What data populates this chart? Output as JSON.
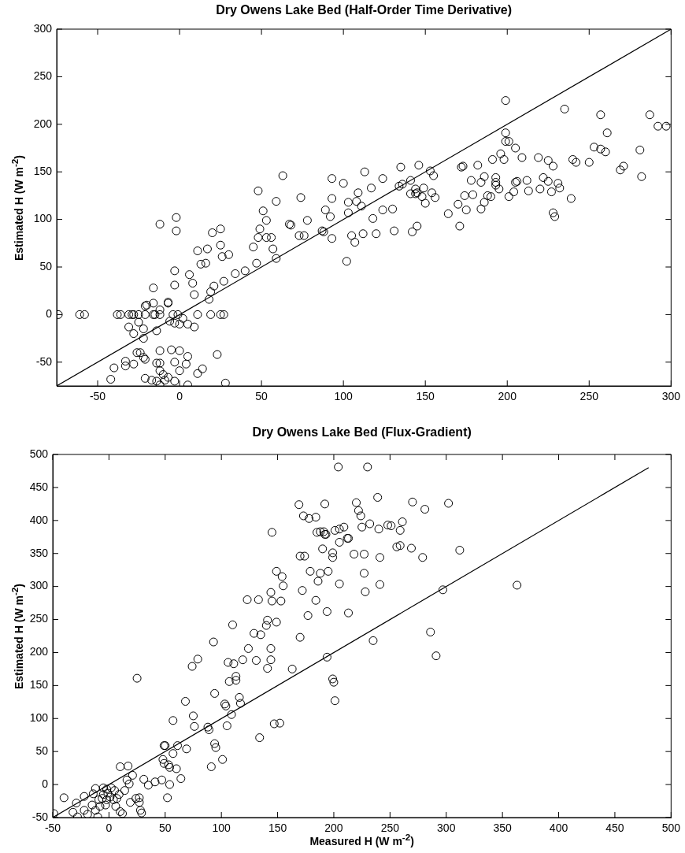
{
  "chart_data": [
    {
      "type": "scatter",
      "title": "Dry Owens Lake Bed (Half-Order Time Derivative)",
      "ylabel": "Estimated H (W m$^{-2}$)",
      "xlim": [
        -75,
        300
      ],
      "ylim": [
        -75,
        300
      ],
      "xticks": [
        -50,
        0,
        50,
        100,
        150,
        200,
        250,
        300
      ],
      "yticks": [
        -50,
        0,
        50,
        100,
        150,
        200,
        250,
        300
      ],
      "grid": false,
      "legend": false,
      "series": [
        {
          "color": "#000000",
          "marker": "circle",
          "x": [
            -74,
            -61,
            -58,
            -38,
            -36,
            -31,
            -29,
            -28,
            -25,
            -21,
            -16,
            -15,
            -12,
            -4,
            -1,
            11,
            19,
            25,
            27,
            -21,
            -20,
            -16,
            -16,
            -7,
            -7,
            -12,
            -25,
            -31,
            -28,
            -22,
            -22,
            -14,
            -6,
            -3,
            0,
            2,
            5,
            9,
            -12,
            -2,
            -2,
            -3,
            -3,
            6,
            8,
            9,
            18,
            19,
            21,
            11,
            13,
            16,
            17,
            20,
            25,
            25,
            26,
            30,
            27,
            34,
            40,
            45,
            47,
            48,
            51,
            53,
            49,
            48,
            53,
            56,
            57,
            59,
            59,
            63,
            67,
            68,
            74,
            73,
            76,
            78,
            87,
            88,
            93,
            93,
            93,
            89,
            92,
            100,
            102,
            103,
            103,
            105,
            107,
            109,
            108,
            111,
            113,
            112,
            -42,
            -40,
            -33,
            -33,
            -28,
            -26,
            -24,
            -22,
            -21,
            -21,
            -17,
            -14,
            -12,
            -12,
            -14,
            -12,
            -10,
            -12,
            -9,
            -7,
            -5,
            -3,
            -3,
            0,
            0,
            4,
            5,
            5,
            11,
            14,
            23,
            28,
            199,
            235,
            257,
            287,
            292,
            297,
            199,
            199,
            201,
            205,
            261,
            253,
            257,
            260,
            281,
            196,
            191,
            198,
            209,
            219,
            225,
            228,
            240,
            242,
            250,
            269,
            271,
            282,
            172,
            173,
            182,
            186,
            184,
            178,
            193,
            193,
            193,
            195,
            188,
            190,
            186,
            184,
            174,
            179,
            170,
            175,
            164,
            171,
            201,
            204,
            205,
            206,
            212,
            213,
            220,
            222,
            225,
            227,
            231,
            232,
            239,
            228,
            229,
            153,
            155,
            146,
            135,
            134,
            136,
            141,
            144,
            145,
            149,
            141,
            144,
            148,
            150,
            154,
            156,
            130,
            124,
            124,
            117,
            118,
            120,
            131,
            142,
            145
          ],
          "values": [
            0,
            0,
            0,
            0,
            0,
            0,
            0,
            0,
            0,
            0,
            0,
            0,
            0,
            0,
            0,
            0,
            0,
            0,
            0,
            9,
            10,
            12,
            28,
            13,
            12,
            5,
            -8,
            -13,
            -20,
            -15,
            -25,
            -17,
            -7,
            -9,
            -10,
            -4,
            -10,
            -13,
            95,
            102,
            88,
            46,
            31,
            42,
            33,
            21,
            16,
            24,
            30,
            67,
            53,
            54,
            69,
            86,
            90,
            73,
            61,
            63,
            35,
            43,
            46,
            71,
            54,
            130,
            109,
            99,
            90,
            81,
            81,
            81,
            69,
            59,
            119,
            146,
            95,
            94,
            123,
            83,
            83,
            99,
            88,
            87,
            80,
            143,
            122,
            110,
            103,
            138,
            56,
            118,
            107,
            83,
            76,
            128,
            119,
            114,
            150,
            85,
            -68,
            -56,
            -49,
            -54,
            -52,
            -40,
            -40,
            -45,
            -47,
            -67,
            -69,
            -51,
            -51,
            -38,
            -70,
            -74,
            -63,
            -59,
            -69,
            -66,
            -37,
            -50,
            -70,
            -38,
            -59,
            -52,
            -44,
            -74,
            -62,
            -57,
            -42,
            -72,
            225,
            216,
            210,
            210,
            198,
            198,
            191,
            182,
            182,
            175,
            191,
            176,
            174,
            171,
            173,
            169,
            163,
            163,
            165,
            165,
            162,
            156,
            163,
            160,
            160,
            152,
            156,
            145,
            155,
            156,
            157,
            145,
            139,
            141,
            144,
            139,
            136,
            132,
            125,
            124,
            118,
            111,
            125,
            126,
            116,
            110,
            106,
            93,
            124,
            129,
            139,
            140,
            141,
            130,
            132,
            144,
            140,
            129,
            138,
            133,
            122,
            107,
            103,
            151,
            146,
            157,
            155,
            135,
            137,
            141,
            132,
            128,
            133,
            127,
            127,
            124,
            117,
            128,
            123,
            111,
            110,
            143,
            133,
            101,
            85,
            88,
            87,
            93
          ]
        },
        {
          "type": "line",
          "color": "#000000",
          "marker": "none",
          "x": [
            -75,
            300
          ],
          "values": [
            -75,
            300
          ]
        }
      ]
    },
    {
      "type": "scatter",
      "title": "Dry Owens Lake Bed (Flux-Gradient)",
      "xlabel": "Measured H (W m$^{-2}$)",
      "ylabel": "Estimated H (W m$^{-2}$)",
      "xlim": [
        -50,
        500
      ],
      "ylim": [
        -50,
        500
      ],
      "xticks": [
        -50,
        0,
        50,
        100,
        150,
        200,
        250,
        300,
        350,
        400,
        450,
        500
      ],
      "yticks": [
        -50,
        0,
        50,
        100,
        150,
        200,
        250,
        300,
        350,
        400,
        450,
        500
      ],
      "grid": false,
      "legend": false,
      "series": [
        {
          "color": "#000000",
          "marker": "circle",
          "x": [
            169,
            173,
            178,
            145,
            170,
            174,
            179,
            149,
            154,
            155,
            172,
            123,
            133,
            144,
            145,
            153,
            177,
            141,
            140,
            149,
            110,
            129,
            135,
            170,
            93,
            79,
            74,
            124,
            144,
            119,
            131,
            106,
            111,
            144,
            141,
            163,
            113,
            113,
            107,
            25,
            68,
            94,
            116,
            117,
            103,
            104,
            109,
            75,
            57,
            76,
            88,
            89,
            105,
            147,
            152,
            134,
            94,
            95,
            101,
            91,
            49,
            50,
            61,
            69,
            57,
            48,
            49,
            53,
            54,
            60,
            64,
            54,
            52,
            47,
            41,
            35,
            31,
            10,
            17,
            21,
            16,
            18,
            19,
            24,
            27,
            27,
            28,
            29,
            10,
            12,
            14,
            -40,
            -49,
            -32,
            -29,
            -28,
            -22,
            -22,
            -19,
            -14,
            -12,
            -12,
            -10,
            -15,
            -5,
            -2,
            -1,
            1,
            5,
            4,
            -6,
            -8,
            -3,
            6,
            9,
            -9,
            -5,
            2,
            -2,
            7,
            204,
            230,
            239,
            192,
            220,
            270,
            302,
            281,
            222,
            224,
            184,
            261,
            248,
            251,
            232,
            225,
            240,
            259,
            209,
            205,
            201,
            185,
            188,
            191,
            192,
            193,
            213,
            212,
            205,
            259,
            256,
            269,
            312,
            190,
            199,
            199,
            218,
            227,
            241,
            279,
            188,
            195,
            227,
            186,
            205,
            241,
            228,
            297,
            363,
            184,
            194,
            213,
            286,
            235,
            291,
            194,
            199,
            200,
            201
          ],
          "values": [
            424,
            407,
            403,
            382,
            346,
            346,
            323,
            323,
            315,
            301,
            294,
            280,
            280,
            291,
            278,
            278,
            256,
            249,
            241,
            246,
            242,
            229,
            227,
            223,
            216,
            190,
            179,
            206,
            206,
            189,
            188,
            185,
            183,
            189,
            176,
            175,
            164,
            158,
            156,
            161,
            126,
            138,
            132,
            123,
            122,
            119,
            106,
            104,
            97,
            88,
            87,
            83,
            89,
            92,
            93,
            71,
            62,
            56,
            38,
            27,
            59,
            59,
            59,
            54,
            47,
            38,
            32,
            30,
            26,
            24,
            9,
            0,
            -20,
            7,
            4,
            -1,
            8,
            27,
            28,
            14,
            7,
            1,
            -27,
            -21,
            -20,
            -27,
            -39,
            -43,
            -41,
            -44,
            -9,
            -20,
            -44,
            -42,
            -28,
            -49,
            -18,
            -39,
            -45,
            -14,
            -6,
            -39,
            -49,
            -31,
            -5,
            -7,
            -13,
            -19,
            -9,
            -23,
            -21,
            -33,
            -31,
            -33,
            -15,
            -23,
            -15,
            -5,
            -23,
            -21,
            481,
            481,
            435,
            425,
            427,
            428,
            426,
            417,
            415,
            407,
            405,
            398,
            393,
            392,
            395,
            390,
            387,
            385,
            390,
            387,
            385,
            382,
            383,
            383,
            379,
            379,
            373,
            373,
            367,
            362,
            360,
            358,
            355,
            357,
            351,
            344,
            349,
            349,
            344,
            344,
            320,
            323,
            320,
            308,
            304,
            303,
            292,
            295,
            302,
            279,
            262,
            260,
            231,
            218,
            195,
            193,
            160,
            155,
            127
          ]
        },
        {
          "type": "line",
          "color": "#000000",
          "marker": "none",
          "x": [
            -50,
            480
          ],
          "values": [
            -50,
            480
          ]
        }
      ]
    }
  ]
}
